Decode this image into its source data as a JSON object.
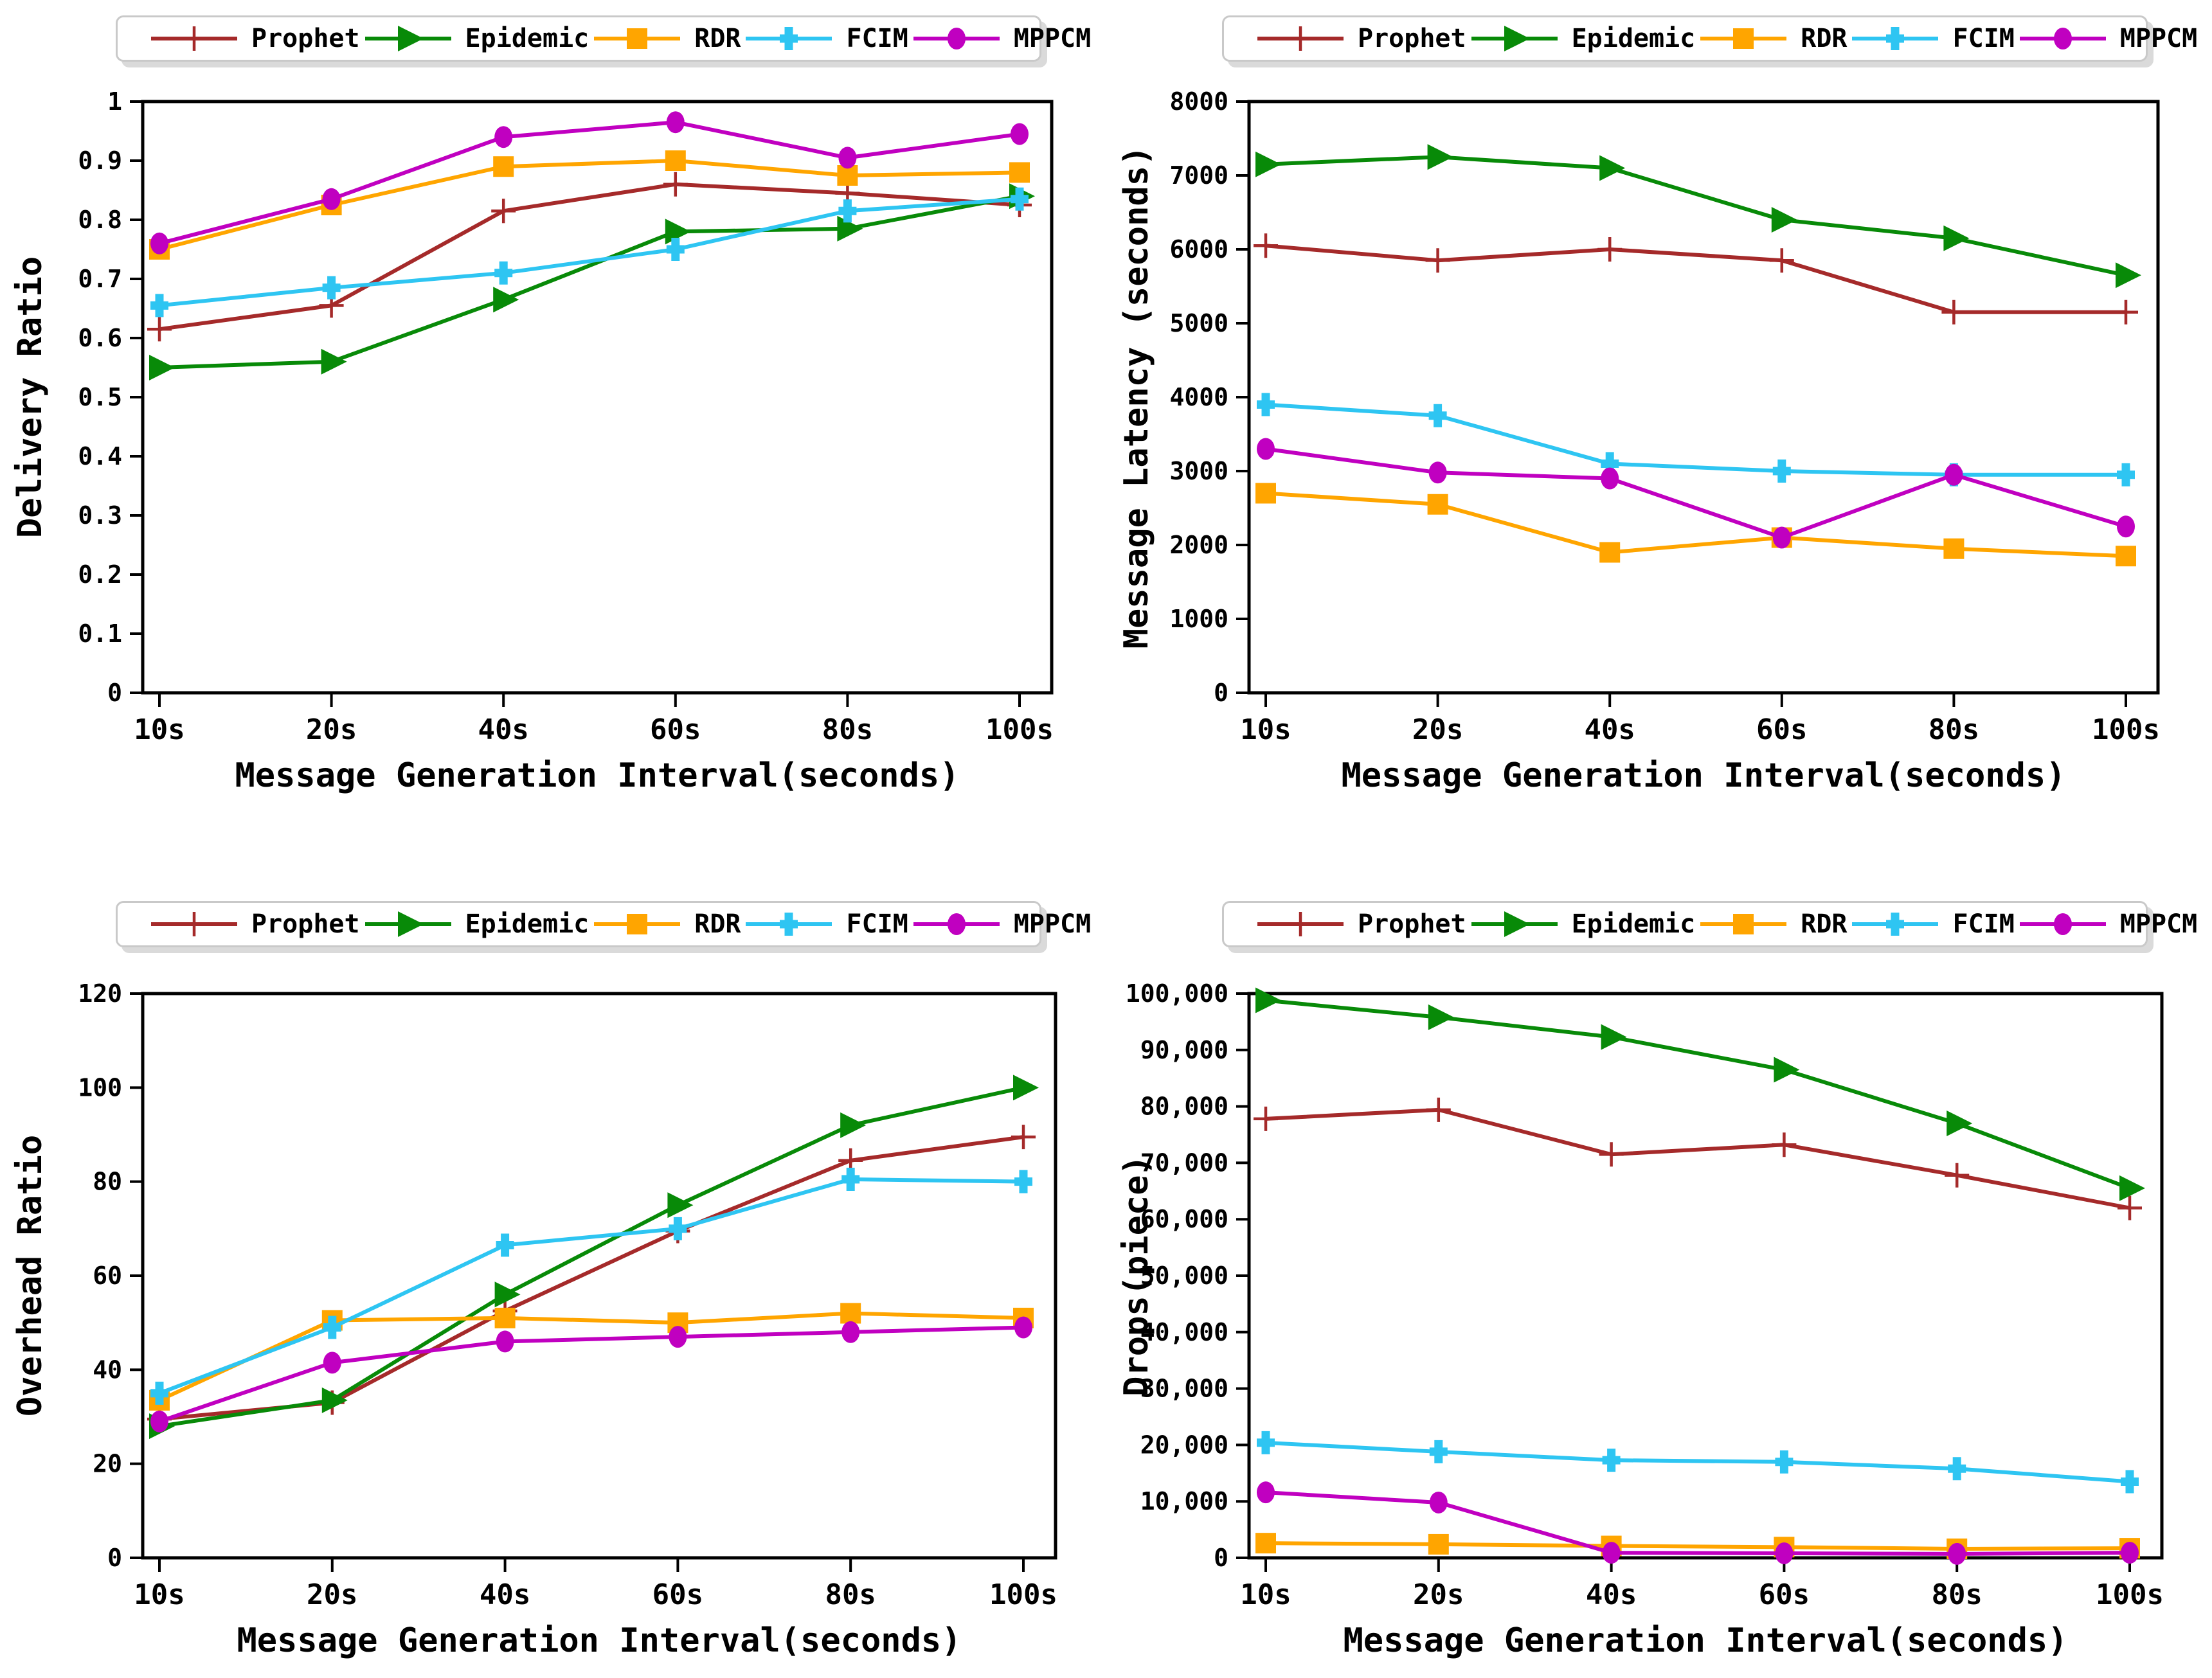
{
  "figure": {
    "background": "#ffffff",
    "axis_color": "#000000",
    "shared_xlabel": "Message Generation Interval(seconds)",
    "x_categories": [
      "10s",
      "20s",
      "40s",
      "60s",
      "80s",
      "100s"
    ],
    "legend": {
      "position": "top-outside-centered",
      "entries": [
        "Prophet",
        "Epidemic",
        "RDR",
        "FCIM",
        "MPPCM"
      ]
    },
    "series_styles": [
      {
        "name": "Prophet",
        "color": "#A52A2A",
        "marker": "plus",
        "marker_icon_name": "plus-marker-icon"
      },
      {
        "name": "Epidemic",
        "color": "#088A08",
        "marker": "triangle-right",
        "marker_icon_name": "triangle-right-marker-icon"
      },
      {
        "name": "RDR",
        "color": "#FFA500",
        "marker": "square",
        "marker_icon_name": "square-marker-icon"
      },
      {
        "name": "FCIM",
        "color": "#2EC5F2",
        "marker": "plus-thick",
        "marker_icon_name": "thick-plus-marker-icon"
      },
      {
        "name": "MPPCM",
        "color": "#C000C0",
        "marker": "circle",
        "marker_icon_name": "circle-marker-icon"
      }
    ]
  },
  "chart_data": [
    {
      "type": "line",
      "position": "top-left",
      "title": "",
      "xlabel": "Message Generation Interval(seconds)",
      "ylabel": "Delivery Ratio",
      "categories": [
        "10s",
        "20s",
        "40s",
        "60s",
        "80s",
        "100s"
      ],
      "ylim": [
        0,
        1
      ],
      "ytick_labels": [
        "0",
        "0.1",
        "0.2",
        "0.3",
        "0.4",
        "0.5",
        "0.6",
        "0.7",
        "0.8",
        "0.9",
        "1"
      ],
      "grid": false,
      "legend_position": "above",
      "series": [
        {
          "name": "Prophet",
          "values": [
            0.615,
            0.655,
            0.815,
            0.86,
            0.845,
            0.825
          ]
        },
        {
          "name": "Epidemic",
          "values": [
            0.55,
            0.56,
            0.665,
            0.78,
            0.785,
            0.84
          ]
        },
        {
          "name": "RDR",
          "values": [
            0.75,
            0.825,
            0.89,
            0.9,
            0.875,
            0.88
          ]
        },
        {
          "name": "FCIM",
          "values": [
            0.655,
            0.685,
            0.71,
            0.75,
            0.815,
            0.835
          ]
        },
        {
          "name": "MPPCM",
          "values": [
            0.76,
            0.835,
            0.94,
            0.965,
            0.905,
            0.945
          ]
        }
      ]
    },
    {
      "type": "line",
      "position": "top-right",
      "title": "",
      "xlabel": "Message Generation Interval(seconds)",
      "ylabel": "Message Latency (seconds)",
      "categories": [
        "10s",
        "20s",
        "40s",
        "60s",
        "80s",
        "100s"
      ],
      "ylim": [
        0,
        8000
      ],
      "ytick_labels": [
        "0",
        "1000",
        "2000",
        "3000",
        "4000",
        "5000",
        "6000",
        "7000",
        "8000"
      ],
      "grid": false,
      "legend_position": "above",
      "series": [
        {
          "name": "Prophet",
          "values": [
            6050,
            5850,
            6000,
            5850,
            5150,
            5150
          ]
        },
        {
          "name": "Epidemic",
          "values": [
            7150,
            7250,
            7100,
            6400,
            6150,
            5650
          ]
        },
        {
          "name": "RDR",
          "values": [
            2700,
            2550,
            1900,
            2100,
            1950,
            1850
          ]
        },
        {
          "name": "FCIM",
          "values": [
            3900,
            3750,
            3100,
            3000,
            2950,
            2950
          ]
        },
        {
          "name": "MPPCM",
          "values": [
            3300,
            2980,
            2900,
            2100,
            2950,
            2250
          ]
        }
      ]
    },
    {
      "type": "line",
      "position": "bottom-left",
      "title": "",
      "xlabel": "Message Generation Interval(seconds)",
      "ylabel": "Overhead Ratio",
      "categories": [
        "10s",
        "20s",
        "40s",
        "60s",
        "80s",
        "100s"
      ],
      "ylim": [
        0,
        120
      ],
      "ytick_labels": [
        "0",
        "20",
        "40",
        "60",
        "80",
        "100",
        "120"
      ],
      "grid": false,
      "legend_position": "above",
      "series": [
        {
          "name": "Prophet",
          "values": [
            29.5,
            33,
            52.5,
            69.5,
            84.5,
            89.5
          ]
        },
        {
          "name": "Epidemic",
          "values": [
            28,
            33.5,
            56,
            75,
            92,
            100
          ]
        },
        {
          "name": "RDR",
          "values": [
            33.5,
            50.5,
            51,
            50,
            52,
            51
          ]
        },
        {
          "name": "FCIM",
          "values": [
            35,
            49,
            66.5,
            70,
            80.5,
            80
          ]
        },
        {
          "name": "MPPCM",
          "values": [
            29,
            41.5,
            46,
            47,
            48,
            49
          ]
        }
      ]
    },
    {
      "type": "line",
      "position": "bottom-right",
      "title": "",
      "xlabel": "Message Generation Interval(seconds)",
      "ylabel": "Drops(piece)",
      "categories": [
        "10s",
        "20s",
        "40s",
        "60s",
        "80s",
        "100s"
      ],
      "ylim": [
        0,
        100000
      ],
      "ytick_labels": [
        "0",
        "10,000",
        "20,000",
        "30,000",
        "40,000",
        "50,000",
        "60,000",
        "70,000",
        "80,000",
        "90,000",
        "100,000"
      ],
      "grid": false,
      "legend_position": "above",
      "series": [
        {
          "name": "Prophet",
          "values": [
            77800,
            79400,
            71500,
            73200,
            67800,
            62000
          ]
        },
        {
          "name": "Epidemic",
          "values": [
            98800,
            95800,
            92300,
            86500,
            77000,
            65500
          ]
        },
        {
          "name": "RDR",
          "values": [
            2600,
            2400,
            2100,
            1900,
            1600,
            1700
          ]
        },
        {
          "name": "FCIM",
          "values": [
            20400,
            18800,
            17300,
            17000,
            15800,
            13500
          ]
        },
        {
          "name": "MPPCM",
          "values": [
            11600,
            9800,
            900,
            800,
            700,
            900
          ]
        }
      ]
    }
  ]
}
